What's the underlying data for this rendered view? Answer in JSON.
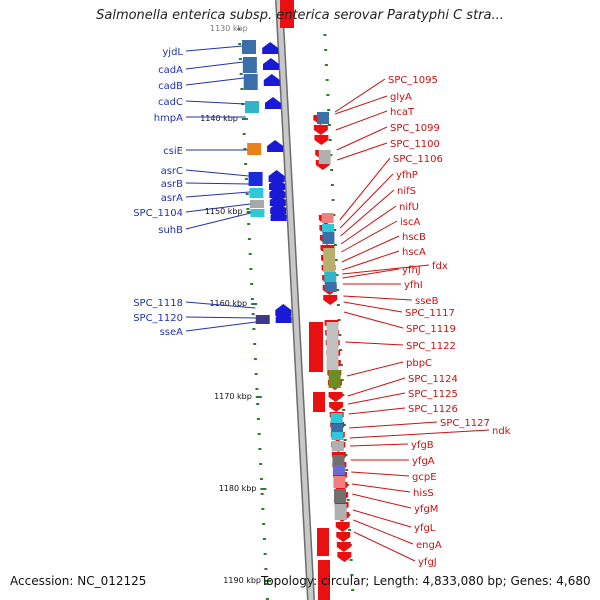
{
  "title": "Salmonella enterica subsp. enterica serovar Paratyphi C stra...",
  "top_left_label": "1130 kbp",
  "accession": "Accession: NC_012125",
  "topology_line": "Topology: circular; Length: 4,833,080 bp; Genes: 4,680",
  "colors": {
    "backbone": "#9a9a9a",
    "backbone_edge": "#6c6c6c",
    "left_label": "#2233aa",
    "right_label": "#cc1111",
    "ruler": "#2e7d2e",
    "kbp": "#111111",
    "gene_blue": "#1a1ad6",
    "gene_red": "#e81010"
  },
  "kbp_marks": [
    "1140 kbp",
    "1150 kbp",
    "1160 kbp",
    "1170 kbp",
    "1180 kbp",
    "1190 kbp"
  ],
  "left_labels": [
    "yjdL",
    "cadA",
    "cadB",
    "cadC",
    "hmpA",
    "csiE",
    "asrC",
    "asrB",
    "asrA",
    "SPC_1104",
    "suhB",
    "SPC_1118",
    "SPC_1120",
    "sseA"
  ],
  "right_labels": [
    "SPC_1095",
    "glyA",
    "hcaT",
    "SPC_1099",
    "SPC_1100",
    "SPC_1106",
    "yfhP",
    "nifS",
    "nifU",
    "iscA",
    "hscB",
    "hscA",
    "fdx",
    "yfhJ",
    "yfhI",
    "sseB",
    "SPC_1117",
    "SPC_1119",
    "SPC_1122",
    "pbpC",
    "SPC_1124",
    "SPC_1125",
    "SPC_1126",
    "SPC_1127",
    "ndk",
    "yfgB",
    "yfgA",
    "gcpE",
    "hisS",
    "yfgM",
    "yfgL",
    "engA",
    "yfgJ"
  ]
}
